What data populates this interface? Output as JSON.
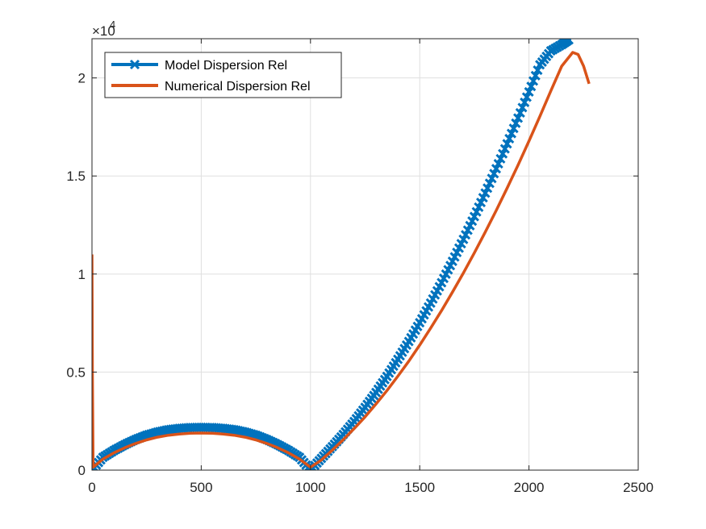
{
  "colors": {
    "model": "#0072BD",
    "numerical": "#D95319",
    "axis": "#262626",
    "grid": "#DFDFDF"
  },
  "chart_data": {
    "type": "line",
    "grid": true,
    "legend_position": "top-left",
    "xlim": [
      0,
      2500
    ],
    "ylim": [
      0,
      22000
    ],
    "xticks": [
      0,
      500,
      1000,
      1500,
      2000,
      2500
    ],
    "xtick_labels": [
      "0",
      "500",
      "1000",
      "1500",
      "2000",
      "2500"
    ],
    "yticks": [
      0,
      5000,
      10000,
      15000,
      20000
    ],
    "ytick_labels": [
      "0",
      "0.5",
      "1",
      "1.5",
      "2"
    ],
    "y_exponent_label": "×10",
    "y_exponent_power": "4",
    "series": [
      {
        "name": "Model Dispersion Rel",
        "marker": "x",
        "x": [
          0,
          50,
          100,
          150,
          200,
          250,
          300,
          350,
          400,
          450,
          500,
          550,
          600,
          650,
          700,
          750,
          800,
          850,
          900,
          950,
          1000,
          1050,
          1100,
          1150,
          1200,
          1250,
          1300,
          1350,
          1400,
          1450,
          1500,
          1550,
          1600,
          1650,
          1700,
          1750,
          1800,
          1850,
          1900,
          1950,
          2000,
          2050,
          2100,
          2150,
          2190
        ],
        "y": [
          0,
          650,
          1000,
          1300,
          1560,
          1780,
          1940,
          2060,
          2130,
          2170,
          2180,
          2170,
          2130,
          2060,
          1940,
          1780,
          1560,
          1300,
          1000,
          650,
          0,
          600,
          1200,
          1820,
          2480,
          3200,
          3960,
          4780,
          5650,
          6560,
          7520,
          8520,
          9560,
          10650,
          11770,
          12930,
          14130,
          15370,
          16640,
          17950,
          19290,
          20670,
          21380,
          21700,
          22000
        ]
      },
      {
        "name": "Numerical Dispersion Rel",
        "marker": "none",
        "x": [
          0,
          2,
          5,
          50,
          100,
          150,
          200,
          250,
          300,
          350,
          400,
          450,
          500,
          550,
          600,
          650,
          700,
          750,
          800,
          850,
          900,
          950,
          1000,
          1050,
          1100,
          1150,
          1200,
          1250,
          1300,
          1350,
          1400,
          1450,
          1500,
          1550,
          1600,
          1650,
          1700,
          1750,
          1800,
          1850,
          1900,
          1950,
          2000,
          2050,
          2100,
          2150,
          2200,
          2225,
          2250,
          2275
        ],
        "y": [
          11000,
          5000,
          150,
          560,
          880,
          1140,
          1360,
          1540,
          1680,
          1780,
          1840,
          1880,
          1890,
          1880,
          1840,
          1780,
          1680,
          1540,
          1360,
          1140,
          880,
          560,
          150,
          520,
          1020,
          1550,
          2120,
          2720,
          3370,
          4060,
          4790,
          5560,
          6380,
          7240,
          8140,
          9080,
          10060,
          11080,
          12140,
          13240,
          14380,
          15560,
          16780,
          18040,
          19340,
          20600,
          21300,
          21200,
          20600,
          19700
        ]
      }
    ]
  }
}
